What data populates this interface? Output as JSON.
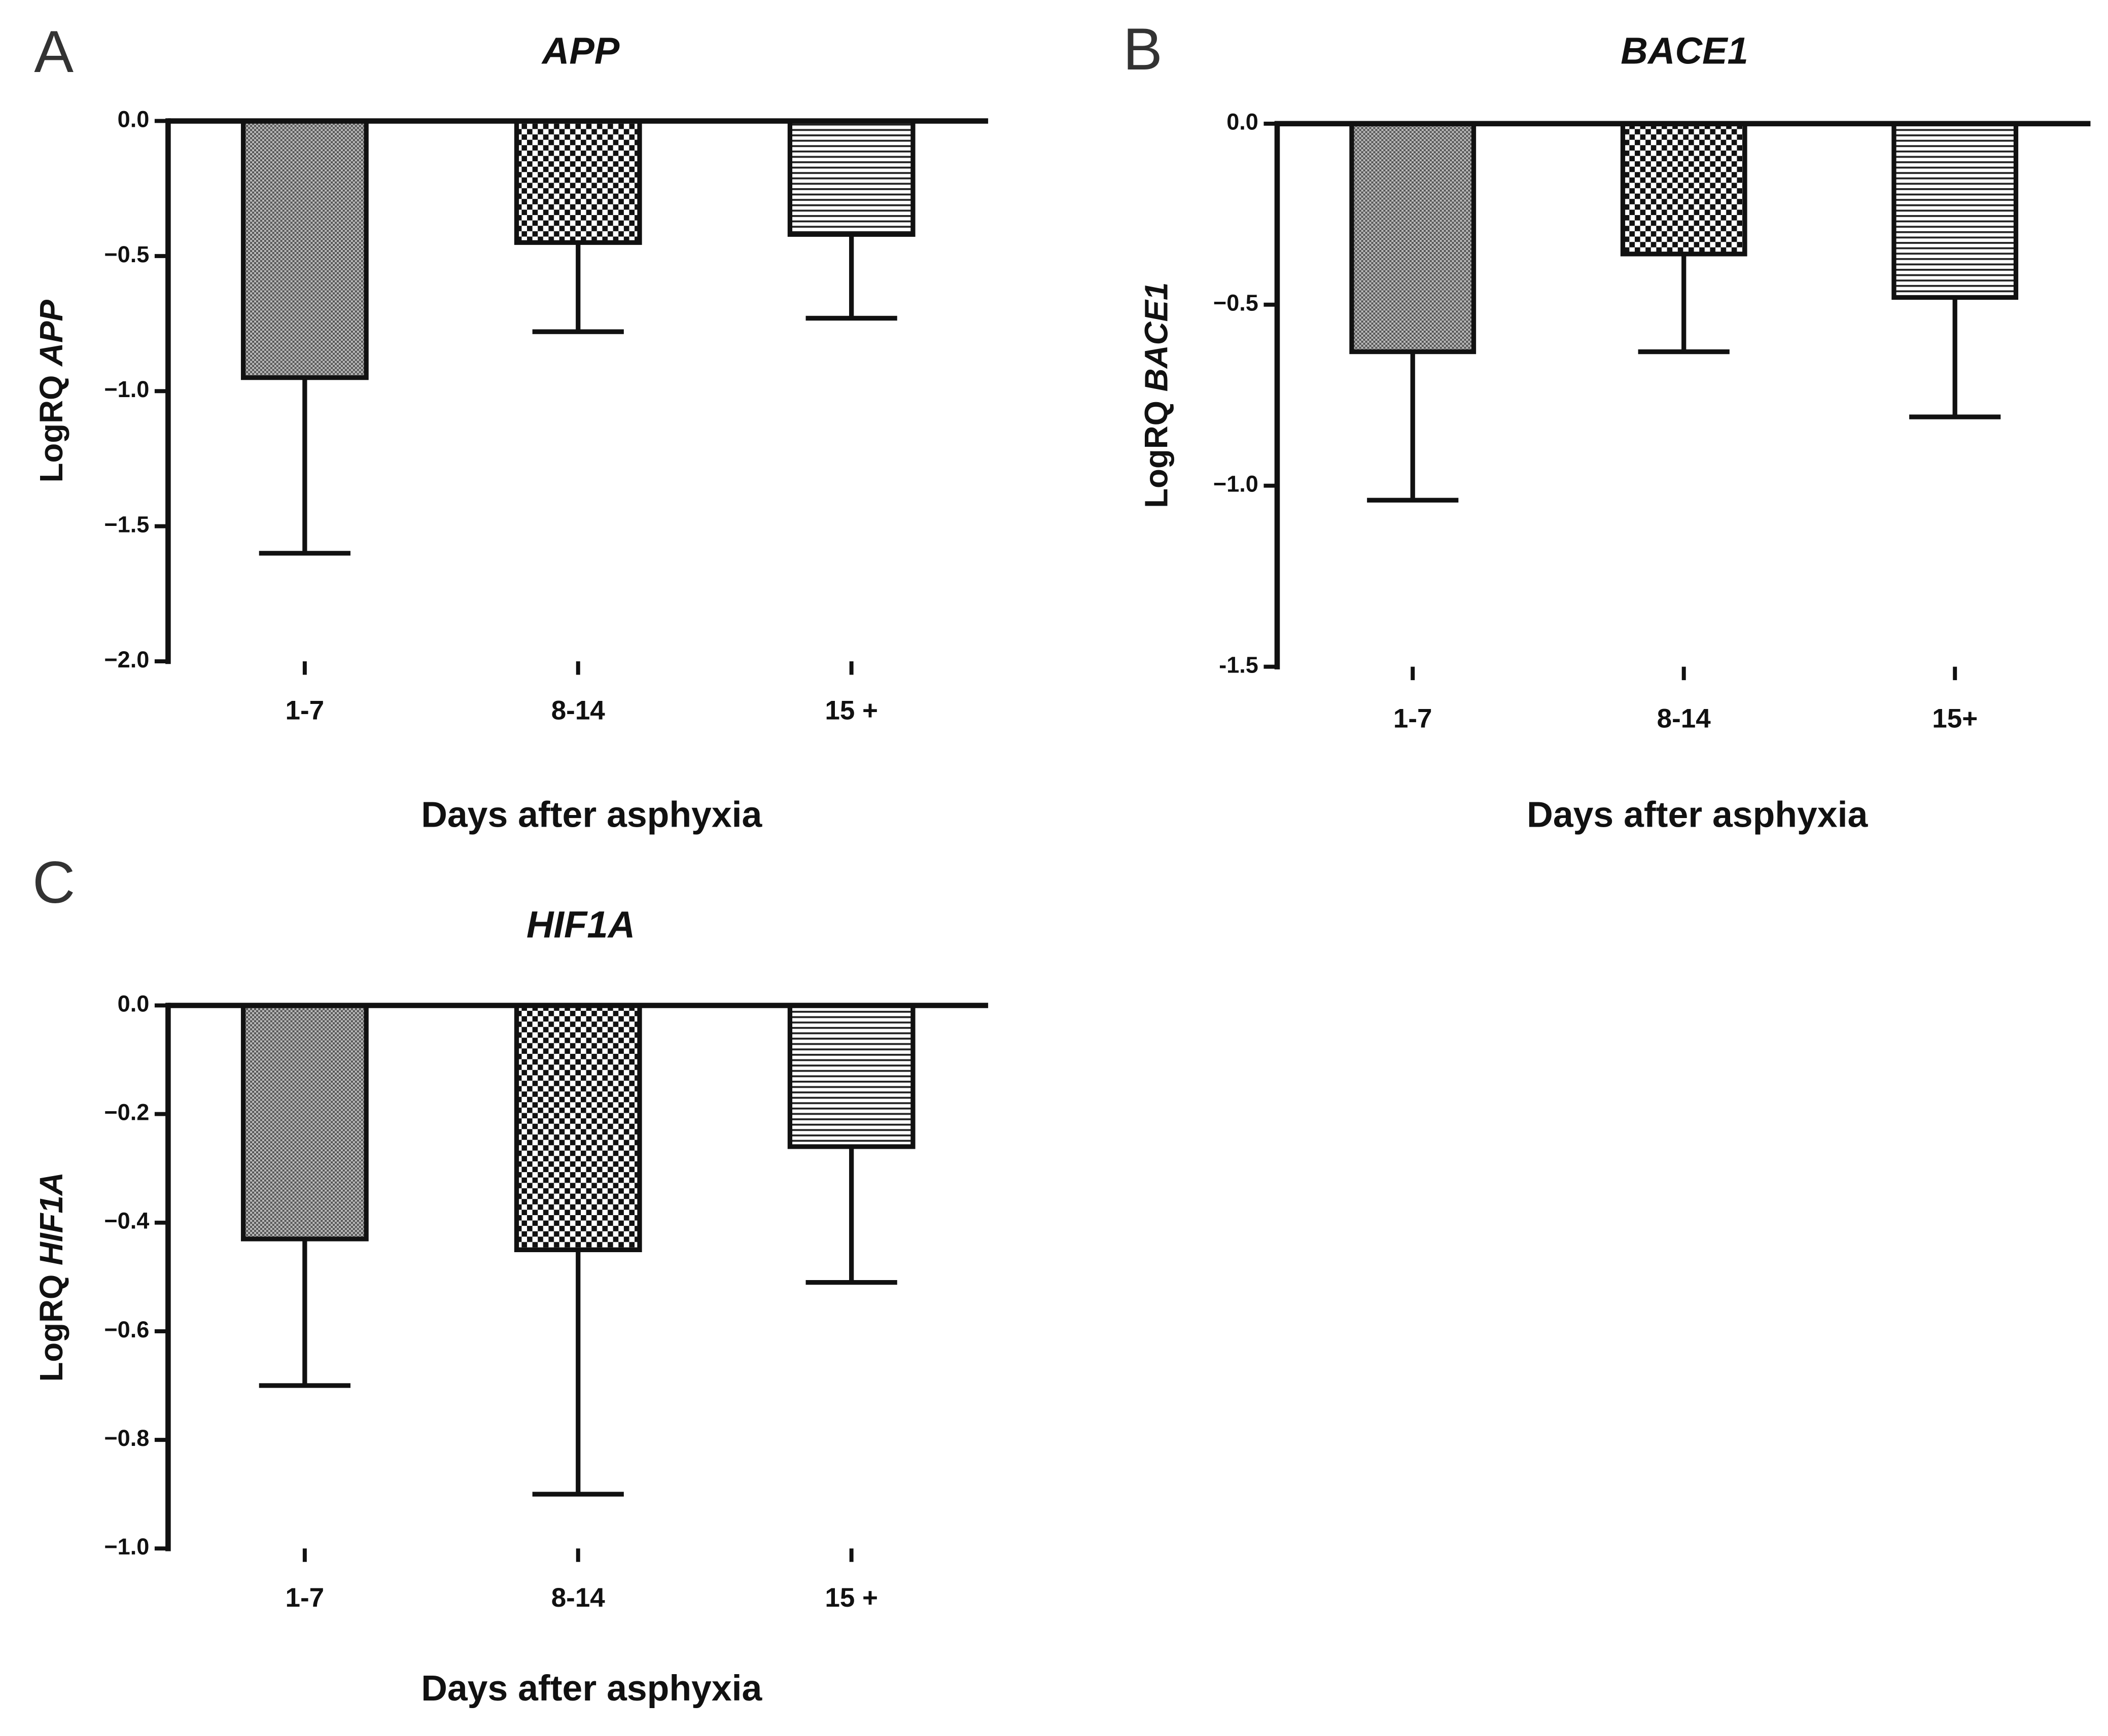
{
  "chart_data": [
    {
      "type": "bar",
      "panel": "A",
      "title": "APP",
      "categories": [
        "1-7",
        "8-14",
        "15 +"
      ],
      "values": [
        -0.95,
        -0.45,
        -0.42
      ],
      "errors": [
        0.65,
        0.33,
        0.31
      ],
      "ylim": [
        -2,
        0
      ],
      "yticks": [
        {
          "value": 0,
          "label": "0.0"
        },
        {
          "value": -0.5,
          "label": "−0.5"
        },
        {
          "value": -1,
          "label": "−1.0"
        },
        {
          "value": -1.5,
          "label": "−1.5"
        },
        {
          "value": -2,
          "label": "−2.0"
        }
      ],
      "xlabel": "Days after asphyxia",
      "ylabel": [
        "LogRQ",
        "APP"
      ],
      "color": "#111111"
    },
    {
      "type": "bar",
      "panel": "B",
      "title": "BACE1",
      "categories": [
        "1-7",
        "8-14",
        "15+"
      ],
      "values": [
        -0.63,
        -0.36,
        -0.48
      ],
      "errors": [
        0.41,
        0.27,
        0.33
      ],
      "ylim": [
        -1.5,
        0
      ],
      "yticks": [
        {
          "value": 0,
          "label": "0.0"
        },
        {
          "value": -0.5,
          "label": "−0.5"
        },
        {
          "value": -1,
          "label": "−1.0"
        },
        {
          "value": -1.5,
          "label": "-1.5"
        }
      ],
      "xlabel": "Days after asphyxia",
      "ylabel": [
        "LogRQ",
        "BACE1"
      ],
      "color": "#111111"
    },
    {
      "type": "bar",
      "panel": "C",
      "title": "HIF1A",
      "categories": [
        "1-7",
        "8-14",
        "15 +"
      ],
      "values": [
        -0.43,
        -0.45,
        -0.26
      ],
      "errors": [
        0.27,
        0.45,
        0.25
      ],
      "ylim": [
        -1,
        0
      ],
      "yticks": [
        {
          "value": 0,
          "label": "0.0"
        },
        {
          "value": -0.2,
          "label": "−0.2"
        },
        {
          "value": -0.4,
          "label": "−0.4"
        },
        {
          "value": -0.6,
          "label": "−0.6"
        },
        {
          "value": -0.8,
          "label": "−0.8"
        },
        {
          "value": -1,
          "label": "−1.0"
        }
      ],
      "xlabel": "Days after asphyxia",
      "ylabel": [
        "LogRQ",
        "HIF1A"
      ],
      "color": "#111111"
    }
  ]
}
